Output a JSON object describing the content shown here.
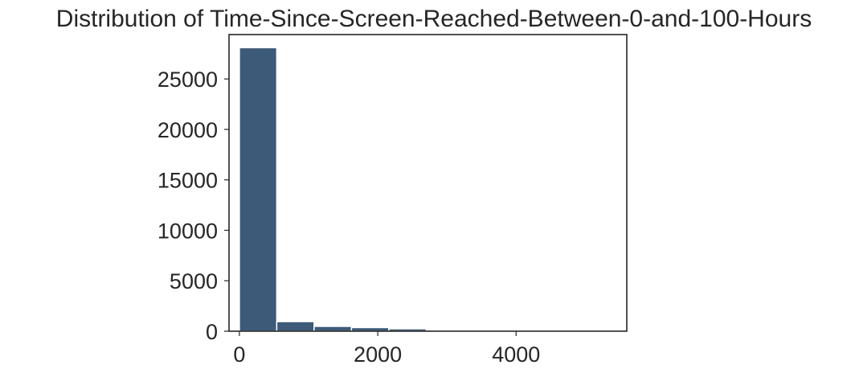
{
  "chart_data": {
    "type": "bar",
    "title": "Distribution of Time-Since-Screen-Reached-Between-0-and-100-Hours",
    "xlabel": "",
    "ylabel": "",
    "xlim": [
      -150,
      5600
    ],
    "ylim": [
      0,
      29400
    ],
    "xticks": [
      0,
      2000,
      4000
    ],
    "xtick_labels": [
      "0",
      "2000",
      "4000"
    ],
    "yticks": [
      0,
      5000,
      10000,
      15000,
      20000,
      25000
    ],
    "ytick_labels": [
      "0",
      "5000",
      "10000",
      "15000",
      "20000",
      "25000"
    ],
    "grid": false,
    "bar_color": "#3d5a78",
    "bin_edges": [
      0,
      540,
      1080,
      1620,
      2160,
      2700,
      3240,
      3780,
      4320,
      4860,
      5400
    ],
    "values": [
      28100,
      950,
      480,
      360,
      240,
      60,
      40,
      30,
      20,
      10
    ]
  }
}
